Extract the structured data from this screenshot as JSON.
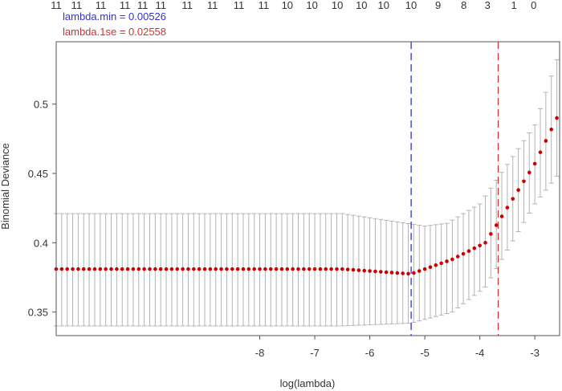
{
  "chart_data": {
    "type": "scatter",
    "xlabel": "log(lambda)",
    "ylabel": "Binomial Deviance",
    "xlim": [
      -11.7,
      -2.55
    ],
    "ylim": [
      0.333,
      0.545
    ],
    "x_ticks": [
      -8,
      -7,
      -6,
      -5,
      -4,
      -3
    ],
    "x_tick_labels": [
      "-8",
      "-7",
      "-6",
      "-5",
      "-4",
      "-3"
    ],
    "y_ticks": [
      0.35,
      0.4,
      0.45,
      0.5
    ],
    "y_tick_labels": [
      "0.35",
      "0.4",
      "0.45",
      "0.5"
    ],
    "top_axis_labels": [
      "11",
      "11",
      "11",
      "11",
      "11",
      "11",
      "11",
      "11",
      "11",
      "11",
      "10",
      "10",
      "10",
      "10",
      "10",
      "10",
      "9",
      "8",
      "3",
      "1",
      "0"
    ],
    "top_axis_label_x": [
      -11.7,
      -11.33,
      -10.89,
      -10.45,
      -10.13,
      -9.8,
      -9.32,
      -8.86,
      -8.38,
      -7.93,
      -7.5,
      -7.05,
      -6.59,
      -6.15,
      -5.75,
      -5.25,
      -4.76,
      -4.29,
      -3.86,
      -3.38,
      -3.02
    ],
    "lambda_min_log": -5.248,
    "lambda_1se_log": -3.666,
    "annotations": {
      "lambda_min": "lambda.min = 0.00526",
      "lambda_1se": "lambda.1se = 0.02558"
    },
    "colors": {
      "points": "#cc0000",
      "errorbars": "#b3b3b3",
      "lambda_min_line": "#3333cc",
      "lambda_1se_line": "#cc3333",
      "lambda_min_text": "#3333cc",
      "lambda_1se_text": "#cc3333"
    },
    "series": {
      "grid": {
        "start": -11.7,
        "step": 0.1,
        "count": 92
      },
      "mean_segments": [
        {
          "from": -11.7,
          "to": -6.5,
          "y_from": 0.381,
          "y_to": 0.381
        },
        {
          "from": -6.5,
          "to": -5.25,
          "y_from": 0.381,
          "y_to": 0.3775
        },
        {
          "from": -5.25,
          "to": -4.5,
          "y_from": 0.3775,
          "y_to": 0.388
        },
        {
          "from": -4.5,
          "to": -3.9,
          "y_from": 0.388,
          "y_to": 0.4
        },
        {
          "from": -3.9,
          "to": -3.0,
          "y_from": 0.4,
          "y_to": 0.457
        },
        {
          "from": -3.0,
          "to": -2.6,
          "y_from": 0.457,
          "y_to": 0.49
        }
      ],
      "upper_segments": [
        {
          "from": -11.7,
          "to": -6.5,
          "y_from": 0.421,
          "y_to": 0.421
        },
        {
          "from": -6.5,
          "to": -5.0,
          "y_from": 0.421,
          "y_to": 0.412
        },
        {
          "from": -5.0,
          "to": -4.6,
          "y_from": 0.412,
          "y_to": 0.414
        },
        {
          "from": -4.6,
          "to": -4.0,
          "y_from": 0.414,
          "y_to": 0.428
        },
        {
          "from": -4.0,
          "to": -3.0,
          "y_from": 0.428,
          "y_to": 0.485
        },
        {
          "from": -3.0,
          "to": -2.6,
          "y_from": 0.485,
          "y_to": 0.532
        }
      ],
      "lower_segments": [
        {
          "from": -11.7,
          "to": -6.5,
          "y_from": 0.34,
          "y_to": 0.34
        },
        {
          "from": -6.5,
          "to": -5.25,
          "y_from": 0.34,
          "y_to": 0.342
        },
        {
          "from": -5.25,
          "to": -4.5,
          "y_from": 0.342,
          "y_to": 0.35
        },
        {
          "from": -4.5,
          "to": -3.9,
          "y_from": 0.35,
          "y_to": 0.368
        },
        {
          "from": -3.9,
          "to": -3.0,
          "y_from": 0.368,
          "y_to": 0.428
        },
        {
          "from": -3.0,
          "to": -2.6,
          "y_from": 0.428,
          "y_to": 0.448
        }
      ]
    }
  }
}
